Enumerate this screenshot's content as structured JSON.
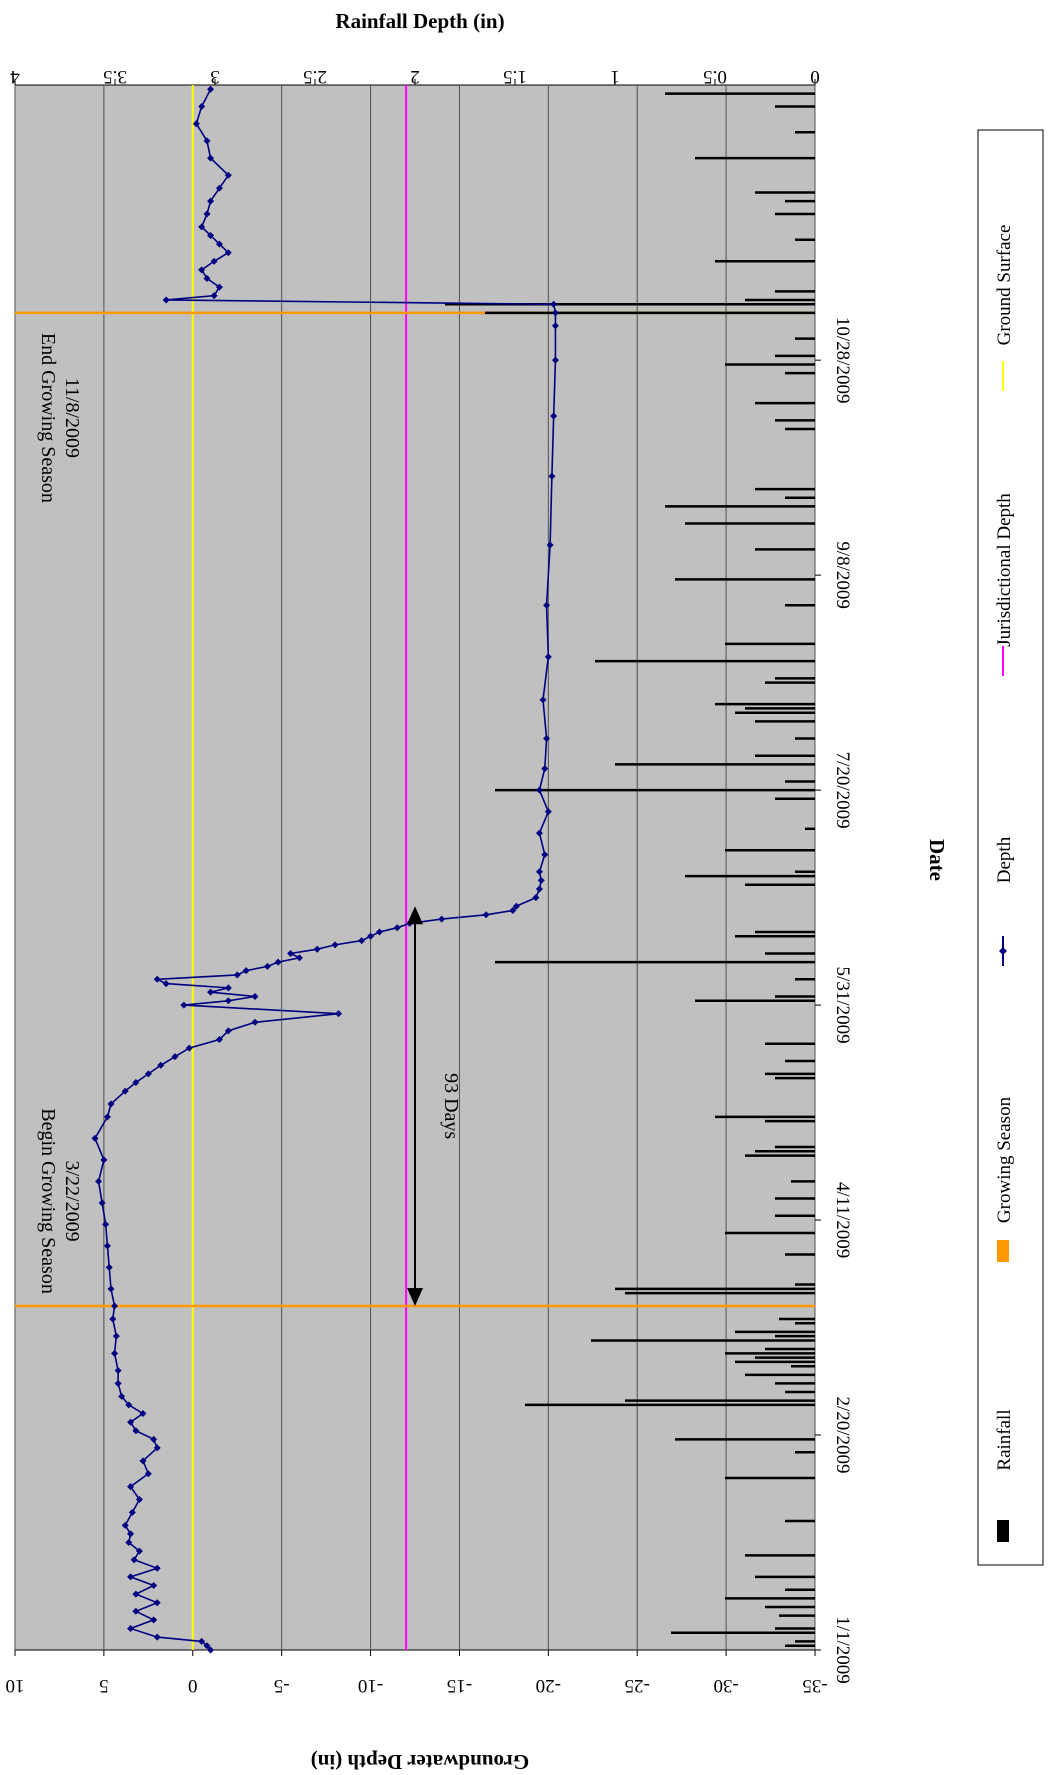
{
  "chart_data": {
    "type": "line",
    "orientation": "rotated-90-clockwise",
    "xlabel": "Date",
    "ylabel": "Groundwater Depth (in)",
    "y2label": "Rainfall Depth (in)",
    "date_range": [
      "2009-01-01",
      "2009-12-31"
    ],
    "x_ticks": [
      "1/1/2009",
      "2/20/2009",
      "4/11/2009",
      "5/31/2009",
      "7/20/2009",
      "9/8/2009",
      "10/28/2009"
    ],
    "x_tick_dates": [
      "2009-01-01",
      "2009-02-20",
      "2009-04-11",
      "2009-05-31",
      "2009-07-20",
      "2009-09-08",
      "2009-10-28"
    ],
    "ylim": [
      -35,
      10
    ],
    "y_ticks": [
      "10",
      "5",
      "0",
      "-5",
      "-10",
      "-15",
      "-20",
      "-25",
      "-30",
      "-35"
    ],
    "y_tick_values": [
      10,
      5,
      0,
      -5,
      -10,
      -15,
      -20,
      -25,
      -30,
      -35
    ],
    "y2lim": [
      0,
      4
    ],
    "y2_ticks": [
      "4",
      "3.5",
      "3",
      "2.5",
      "2",
      "1.5",
      "1",
      "0.5",
      "0"
    ],
    "y2_tick_values": [
      4,
      3.5,
      3,
      2.5,
      2,
      1.5,
      1,
      0.5,
      0
    ],
    "grid": true,
    "legend_position": "right",
    "legend": [
      "Rainfall",
      "Growing Season",
      "Depth",
      "Jurisdictional Depth",
      "Ground Surface"
    ],
    "colors": {
      "plot_bg": "#c0c0c0",
      "depth": "#000080",
      "rainfall": "#000000",
      "growing_season": "#ff9900",
      "jurisdictional": "#ff00ff",
      "ground_surface": "#ffff00",
      "gridline": "#505050"
    },
    "series": [
      {
        "name": "Depth",
        "dates": [
          "2009-01-01",
          "2009-01-02",
          "2009-01-03",
          "2009-01-04",
          "2009-01-06",
          "2009-01-08",
          "2009-01-10",
          "2009-01-12",
          "2009-01-14",
          "2009-01-16",
          "2009-01-18",
          "2009-01-20",
          "2009-01-22",
          "2009-01-24",
          "2009-01-26",
          "2009-01-28",
          "2009-01-30",
          "2009-02-02",
          "2009-02-05",
          "2009-02-08",
          "2009-02-11",
          "2009-02-14",
          "2009-02-17",
          "2009-02-19",
          "2009-02-21",
          "2009-02-23",
          "2009-02-25",
          "2009-02-27",
          "2009-03-01",
          "2009-03-04",
          "2009-03-07",
          "2009-03-11",
          "2009-03-15",
          "2009-03-19",
          "2009-03-22",
          "2009-03-26",
          "2009-03-31",
          "2009-04-05",
          "2009-04-10",
          "2009-04-15",
          "2009-04-20",
          "2009-04-25",
          "2009-04-30",
          "2009-05-05",
          "2009-05-08",
          "2009-05-11",
          "2009-05-13",
          "2009-05-15",
          "2009-05-17",
          "2009-05-19",
          "2009-05-21",
          "2009-05-23",
          "2009-05-25",
          "2009-05-27",
          "2009-05-29",
          "2009-05-31",
          "2009-06-01",
          "2009-06-02",
          "2009-06-03",
          "2009-06-04",
          "2009-06-05",
          "2009-06-06",
          "2009-06-07",
          "2009-06-08",
          "2009-06-09",
          "2009-06-10",
          "2009-06-11",
          "2009-06-12",
          "2009-06-13",
          "2009-06-14",
          "2009-06-15",
          "2009-06-16",
          "2009-06-17",
          "2009-06-18",
          "2009-06-19",
          "2009-06-20",
          "2009-06-21",
          "2009-06-22",
          "2009-06-23",
          "2009-06-25",
          "2009-06-27",
          "2009-06-29",
          "2009-07-01",
          "2009-07-05",
          "2009-07-10",
          "2009-07-15",
          "2009-07-20",
          "2009-07-25",
          "2009-08-01",
          "2009-08-10",
          "2009-08-20",
          "2009-09-01",
          "2009-09-15",
          "2009-10-01",
          "2009-10-15",
          "2009-10-28",
          "2009-11-05",
          "2009-11-08",
          "2009-11-10",
          "2009-11-11",
          "2009-11-12",
          "2009-11-14",
          "2009-11-16",
          "2009-11-18",
          "2009-11-20",
          "2009-11-22",
          "2009-11-24",
          "2009-11-26",
          "2009-11-28",
          "2009-12-01",
          "2009-12-04",
          "2009-12-07",
          "2009-12-10",
          "2009-12-14",
          "2009-12-18",
          "2009-12-22",
          "2009-12-26",
          "2009-12-30"
        ],
        "values": [
          -1.0,
          -0.8,
          -0.5,
          2.0,
          3.5,
          2.2,
          3.2,
          2.0,
          3.2,
          2.2,
          3.5,
          2.0,
          3.3,
          3.0,
          3.6,
          3.5,
          3.8,
          3.4,
          3.0,
          3.5,
          2.5,
          2.8,
          2.0,
          2.2,
          3.2,
          3.5,
          2.8,
          3.6,
          4.0,
          4.2,
          4.2,
          4.4,
          4.3,
          4.5,
          4.4,
          4.6,
          4.7,
          4.8,
          4.9,
          5.1,
          5.3,
          5.0,
          5.5,
          4.8,
          4.6,
          3.8,
          3.2,
          2.5,
          1.8,
          1.0,
          0.2,
          -1.5,
          -2.0,
          -3.5,
          -8.2,
          0.5,
          -2.0,
          -3.5,
          -1.0,
          -2.0,
          1.5,
          2.0,
          -2.5,
          -3.0,
          -4.2,
          -4.8,
          -6.0,
          -5.5,
          -7.0,
          -8.0,
          -9.5,
          -10.0,
          -10.5,
          -11.5,
          -12.2,
          -14.0,
          -16.5,
          -18.0,
          -18.2,
          -19.3,
          -19.5,
          -19.6,
          -19.5,
          -19.8,
          -19.5,
          -20.0,
          -19.5,
          -19.8,
          -19.9,
          -19.7,
          -20.0,
          -19.9,
          -20.1,
          -20.2,
          -20.3,
          -20.4,
          -20.4,
          -20.4,
          -20.3,
          1.5,
          -1.2,
          -1.5,
          -0.8,
          -0.5,
          -1.2,
          -2.0,
          -1.5,
          -1.0,
          -0.5,
          -0.8,
          -1.0,
          -1.5,
          -2.0,
          -1.0,
          -0.8,
          -0.2,
          -0.5,
          -1.0
        ]
      },
      {
        "name": "Rainfall",
        "dates": [
          "2009-01-02",
          "2009-01-03",
          "2009-01-05",
          "2009-01-06",
          "2009-01-09",
          "2009-01-11",
          "2009-01-13",
          "2009-01-15",
          "2009-01-18",
          "2009-01-23",
          "2009-01-31",
          "2009-02-10",
          "2009-02-16",
          "2009-02-19",
          "2009-02-27",
          "2009-02-28",
          "2009-03-02",
          "2009-03-04",
          "2009-03-06",
          "2009-03-08",
          "2009-03-09",
          "2009-03-10",
          "2009-03-11",
          "2009-03-12",
          "2009-03-14",
          "2009-03-15",
          "2009-03-16",
          "2009-03-18",
          "2009-03-19",
          "2009-03-25",
          "2009-03-26",
          "2009-03-27",
          "2009-04-03",
          "2009-04-08",
          "2009-04-12",
          "2009-04-16",
          "2009-04-20",
          "2009-04-26",
          "2009-04-27",
          "2009-04-28",
          "2009-05-04",
          "2009-05-05",
          "2009-05-14",
          "2009-05-15",
          "2009-05-18",
          "2009-05-22",
          "2009-06-01",
          "2009-06-02",
          "2009-06-06",
          "2009-06-10",
          "2009-06-12",
          "2009-06-16",
          "2009-06-17",
          "2009-06-28",
          "2009-06-30",
          "2009-07-01",
          "2009-07-06",
          "2009-07-11",
          "2009-07-18",
          "2009-07-20",
          "2009-07-22",
          "2009-07-26",
          "2009-07-28",
          "2009-08-01",
          "2009-08-05",
          "2009-08-07",
          "2009-08-08",
          "2009-08-09",
          "2009-08-14",
          "2009-08-15",
          "2009-08-19",
          "2009-08-23",
          "2009-09-01",
          "2009-09-07",
          "2009-09-14",
          "2009-09-20",
          "2009-09-24",
          "2009-09-26",
          "2009-09-28",
          "2009-10-12",
          "2009-10-14",
          "2009-10-18",
          "2009-10-25",
          "2009-10-27",
          "2009-10-29",
          "2009-11-02",
          "2009-11-08",
          "2009-11-10",
          "2009-11-11",
          "2009-11-13",
          "2009-11-20",
          "2009-11-25",
          "2009-12-01",
          "2009-12-04",
          "2009-12-06",
          "2009-12-14",
          "2009-12-20",
          "2009-12-26",
          "2009-12-29"
        ],
        "values": [
          0.15,
          0.1,
          0.72,
          0.2,
          0.18,
          0.25,
          0.45,
          0.15,
          0.3,
          0.35,
          0.15,
          0.45,
          0.1,
          0.7,
          1.45,
          0.95,
          0.15,
          0.2,
          0.35,
          0.12,
          0.4,
          0.3,
          0.45,
          0.25,
          1.12,
          0.2,
          0.4,
          0.1,
          0.18,
          0.95,
          1.0,
          0.1,
          0.15,
          0.45,
          0.2,
          0.2,
          0.12,
          0.35,
          0.3,
          0.2,
          0.25,
          0.5,
          0.2,
          0.25,
          0.15,
          0.25,
          0.6,
          0.2,
          0.1,
          1.6,
          0.25,
          0.4,
          0.3,
          0.35,
          0.65,
          0.1,
          0.45,
          0.05,
          0.2,
          1.6,
          0.15,
          1.0,
          0.3,
          0.1,
          0.3,
          0.4,
          0.35,
          0.5,
          0.25,
          0.2,
          1.1,
          0.45,
          0.15,
          0.7,
          0.3,
          0.65,
          0.75,
          0.15,
          0.3,
          0.15,
          0.2,
          0.3,
          0.15,
          0.45,
          0.2,
          0.1,
          1.65,
          1.85,
          0.35,
          0.2,
          0.5,
          0.1,
          0.2,
          0.15,
          0.3,
          0.6,
          0.1,
          0.2,
          0.75
        ]
      }
    ],
    "jurisdictional_depth": -12,
    "ground_surface": 0,
    "growing_season": {
      "begin_date": "2009-03-22",
      "end_date": "2009-11-08",
      "begin_label": [
        "Begin Growing Season",
        "3/22/2009"
      ],
      "end_label": [
        "End Growing Season",
        "11/8/2009"
      ]
    },
    "annotations": {
      "duration_label": "93 Days",
      "duration_from": "2009-03-22",
      "duration_to": "2009-06-23",
      "duration_level": -12.5
    }
  }
}
